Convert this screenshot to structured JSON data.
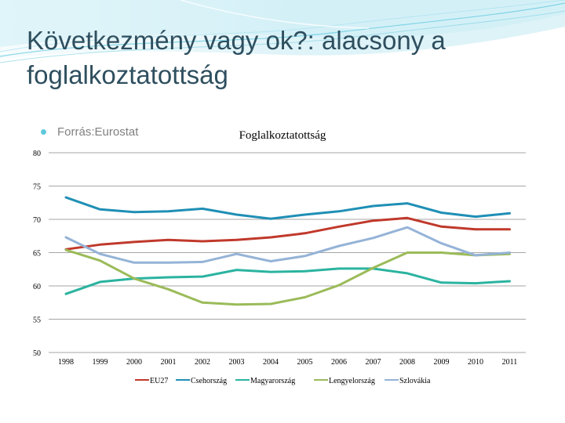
{
  "slide": {
    "title": "Következmény vagy ok?: alacsony a foglalkoztatottság",
    "bullet": "Forrás:Eurostat"
  },
  "colors": {
    "background": "#ffffff",
    "title": "#2f4f5f",
    "accent": "#5fc9dc"
  },
  "chart_data": {
    "type": "line",
    "title": "Foglalkoztatottság",
    "xlabel": "",
    "ylabel": "",
    "categories": [
      "1998",
      "1999",
      "2000",
      "2001",
      "2002",
      "2003",
      "2004",
      "2005",
      "2006",
      "2007",
      "2008",
      "2009",
      "2010",
      "2011"
    ],
    "yticks": [
      "80",
      "75",
      "70",
      "65",
      "60",
      "55",
      "50"
    ],
    "ylim": [
      50,
      80
    ],
    "grid": true,
    "legend_position": "bottom",
    "series": [
      {
        "name": "EU27",
        "color": "#c0392b",
        "values": [
          65.5,
          66.2,
          66.6,
          66.9,
          66.7,
          66.9,
          67.3,
          67.9,
          68.9,
          69.8,
          70.2,
          68.9,
          68.5,
          68.5
        ]
      },
      {
        "name": "Csehország",
        "color": "#1f8fb5",
        "values": [
          73.3,
          71.5,
          71.1,
          71.2,
          71.6,
          70.7,
          70.1,
          70.7,
          71.2,
          72.0,
          72.4,
          71.0,
          70.4,
          70.9
        ]
      },
      {
        "name": "Magyarország",
        "color": "#2bb3a0",
        "values": [
          58.8,
          60.6,
          61.1,
          61.3,
          61.4,
          62.4,
          62.1,
          62.2,
          62.6,
          62.6,
          61.9,
          60.5,
          60.4,
          60.7
        ]
      },
      {
        "name": "Lengyelország",
        "color": "#9bbb59",
        "values": [
          65.4,
          63.8,
          61.1,
          59.5,
          57.5,
          57.2,
          57.3,
          58.3,
          60.1,
          62.7,
          65.0,
          65.0,
          64.6,
          64.8
        ]
      },
      {
        "name": "Szlovákia",
        "color": "#95b3d7",
        "values": [
          67.3,
          64.8,
          63.5,
          63.5,
          63.6,
          64.8,
          63.7,
          64.5,
          66.0,
          67.2,
          68.8,
          66.4,
          64.6,
          65.0
        ]
      }
    ]
  }
}
